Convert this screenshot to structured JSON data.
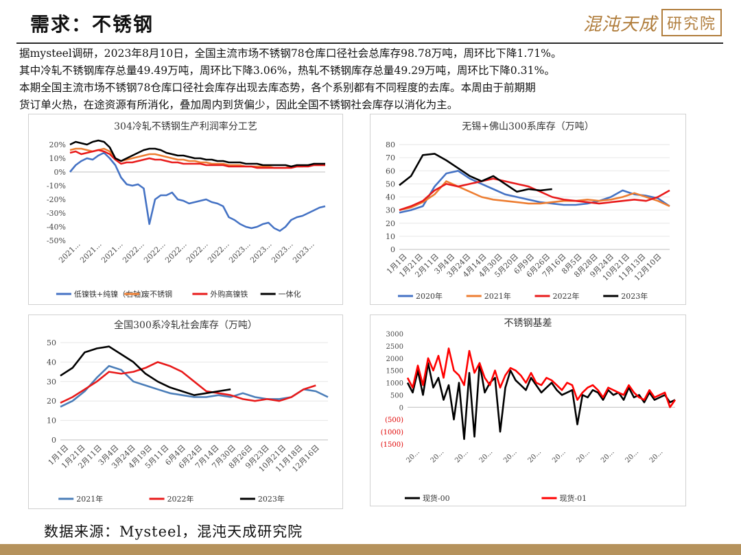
{
  "header": {
    "title": "需求：不锈钢",
    "logo_text": "混沌天成",
    "logo_seal": "研究院"
  },
  "paragraph": {
    "line1": "据mysteel调研，2023年8月10日，全国主流市场不锈钢78仓库口径社会总库存98.78万吨，周环比下降1.71%。",
    "line2": "其中冷轧不锈钢库存总量49.49万吨，周环比下降3.06%，热轧不锈钢库存总量49.29万吨，周环比下降0.31%。",
    "line3": "本期全国主流市场不锈钢78仓库口径社会库存出现去库态势，各个系别都有不同程度的去库。本周由于前期期",
    "line4": "货订单火热，在途资源有所消化，叠加周内到货偏少，因此全国不锈钢社会库存以消化为主。"
  },
  "source": "数据来源：Mysteel，混沌天成研究院",
  "colors": {
    "blue": "#4472c4",
    "orange": "#ed7d31",
    "red": "#e81a1a",
    "black": "#000000",
    "axis": "#d9d9d9",
    "brand": "#b5925c"
  },
  "chart_data": [
    {
      "id": "chart1",
      "type": "line",
      "title": "304冷轧不锈钢生产利润率分工艺",
      "ylim": [
        -50,
        20
      ],
      "yticks": [
        "20%",
        "10%",
        "0%",
        "-10%",
        "-20%",
        "-30%",
        "-40%",
        "-50%"
      ],
      "xticks": [
        "2021...",
        "2021...",
        "2021...",
        "2022...",
        "2022...",
        "2022...",
        "2022...",
        "2022...",
        "2023...",
        "2023...",
        "2023...",
        "2023..."
      ],
      "legend_position": "bottom",
      "series": [
        {
          "name": "低镍铁+纯镍（右轴）",
          "color": "#4472c4",
          "values": [
            0,
            5,
            8,
            10,
            9,
            12,
            14,
            10,
            5,
            -4,
            -9,
            -10,
            -9,
            -12,
            -38,
            -20,
            -17,
            -17,
            -15,
            -20,
            -21,
            -23,
            -22,
            -21,
            -20,
            -22,
            -23,
            -25,
            -33,
            -35,
            -38,
            -40,
            -41,
            -40,
            -38,
            -37,
            -41,
            -43,
            -40,
            -35,
            -33,
            -32,
            -30,
            -28,
            -26,
            -25
          ]
        },
        {
          "name": "废不锈钢",
          "color": "#ed7d31",
          "values": [
            16,
            17,
            17,
            16,
            15,
            16,
            17,
            15,
            10,
            8,
            9,
            10,
            11,
            12,
            13,
            13,
            12,
            11,
            10,
            9,
            9,
            8,
            8,
            7,
            7,
            6,
            6,
            6,
            5,
            5,
            5,
            4,
            4,
            4,
            4,
            4,
            3,
            3,
            3,
            4,
            4,
            4,
            5,
            5,
            5,
            5
          ]
        },
        {
          "name": "外购高镍铁",
          "color": "#e81a1a",
          "values": [
            14,
            15,
            13,
            14,
            15,
            16,
            15,
            13,
            9,
            6,
            7,
            7,
            8,
            9,
            10,
            9,
            9,
            8,
            7,
            7,
            6,
            6,
            6,
            6,
            5,
            5,
            5,
            5,
            4,
            4,
            4,
            4,
            4,
            3,
            3,
            3,
            3,
            3,
            3,
            3,
            4,
            4,
            4,
            5,
            5,
            5
          ]
        },
        {
          "name": "一体化",
          "color": "#000000",
          "values": [
            20,
            22,
            21,
            20,
            22,
            23,
            22,
            18,
            10,
            8,
            10,
            12,
            14,
            16,
            17,
            17,
            16,
            14,
            13,
            12,
            12,
            11,
            10,
            10,
            9,
            9,
            8,
            8,
            7,
            7,
            7,
            6,
            6,
            6,
            5,
            5,
            5,
            5,
            5,
            4,
            5,
            5,
            5,
            6,
            6,
            6
          ]
        }
      ]
    },
    {
      "id": "chart2",
      "type": "line",
      "title": "无锡+佛山300系库存（万吨）",
      "ylim": [
        0,
        80
      ],
      "yticks": [
        "80",
        "70",
        "60",
        "50",
        "40",
        "30",
        "20",
        "10",
        "0"
      ],
      "xticks": [
        "1月1日",
        "1月21日",
        "2月11日",
        "3月4日",
        "3月24日",
        "4月14日",
        "4月30日",
        "5月20日",
        "6月9日",
        "6月26日",
        "7月16日",
        "8月5日",
        "8月28日",
        "9月24日",
        "10月21日",
        "11月13日",
        "12月10日"
      ],
      "legend_position": "bottom",
      "series": [
        {
          "name": "2020年",
          "color": "#4472c4",
          "values": [
            28,
            30,
            33,
            48,
            58,
            60,
            54,
            50,
            46,
            42,
            40,
            38,
            36,
            35,
            34,
            34,
            35,
            37,
            40,
            45,
            42,
            41,
            39,
            33
          ]
        },
        {
          "name": "2021年",
          "color": "#ed7d31",
          "values": [
            30,
            32,
            36,
            42,
            52,
            48,
            44,
            40,
            38,
            37,
            36,
            35,
            35,
            36,
            37,
            37,
            38,
            37,
            38,
            40,
            43,
            40,
            37,
            33
          ]
        },
        {
          "name": "2022年",
          "color": "#e81a1a",
          "values": [
            30,
            33,
            37,
            45,
            50,
            48,
            50,
            52,
            54,
            52,
            50,
            48,
            44,
            40,
            38,
            37,
            36,
            35,
            36,
            37,
            38,
            37,
            40,
            45
          ]
        },
        {
          "name": "2023年",
          "color": "#000000",
          "values": [
            49,
            56,
            72,
            73,
            68,
            62,
            56,
            52,
            56,
            50,
            44,
            46,
            45,
            46
          ]
        }
      ]
    },
    {
      "id": "chart3",
      "type": "line",
      "title": "全国300系冷轧社会库存（万吨）",
      "ylim": [
        0,
        50
      ],
      "yticks": [
        "50",
        "40",
        "30",
        "20",
        "10",
        "0"
      ],
      "xticks": [
        "1月1日",
        "1月21日",
        "2月11日",
        "3月4日",
        "3月24日",
        "4月19日",
        "5月11日",
        "6月4日",
        "6月24日",
        "7月14日",
        "7月30日",
        "8月26日",
        "9月23日",
        "10月21日",
        "11月18日",
        "12月16日"
      ],
      "legend_position": "bottom",
      "series": [
        {
          "name": "2021年",
          "color": "#4a7db8",
          "values": [
            17,
            20,
            25,
            32,
            38,
            36,
            30,
            28,
            26,
            24,
            23,
            22,
            22,
            23,
            22,
            24,
            22,
            21,
            21,
            22,
            26,
            25,
            22
          ]
        },
        {
          "name": "2022年",
          "color": "#e81a1a",
          "values": [
            19,
            22,
            26,
            30,
            35,
            34,
            35,
            37,
            40,
            38,
            35,
            30,
            25,
            24,
            23,
            21,
            20,
            21,
            20,
            22,
            26,
            28
          ]
        },
        {
          "name": "2023年",
          "color": "#000000",
          "values": [
            33,
            37,
            45,
            47,
            48,
            44,
            40,
            34,
            30,
            27,
            25,
            23,
            24,
            25,
            26
          ]
        }
      ]
    },
    {
      "id": "chart4",
      "type": "line",
      "title": "不锈钢基差",
      "ylim": [
        -1500,
        3000
      ],
      "yticks": [
        "3000",
        "2500",
        "2000",
        "1500",
        "1000",
        "500",
        "0",
        "(500)",
        "(1000)",
        "(1500)"
      ],
      "xticks": [
        "20...",
        "20...",
        "20...",
        "20...",
        "20...",
        "20...",
        "20...",
        "20...",
        "20...",
        "20...",
        "20..."
      ],
      "legend_position": "bottom",
      "series": [
        {
          "name": "现货-00",
          "color": "#000000",
          "values": [
            1000,
            600,
            1500,
            500,
            1800,
            800,
            1200,
            300,
            900,
            -500,
            1000,
            -1300,
            1400,
            -1200,
            1800,
            600,
            1000,
            1200,
            -1000,
            800,
            1500,
            1100,
            900,
            700,
            1200,
            900,
            600,
            800,
            1000,
            700,
            500,
            600,
            700,
            -700,
            500,
            400,
            700,
            600,
            300,
            700,
            500,
            600,
            300,
            800,
            400,
            500,
            200,
            600,
            300,
            400,
            500,
            200,
            300
          ]
        },
        {
          "name": "现货-01",
          "color": "#ff0000",
          "values": [
            1200,
            800,
            1700,
            900,
            2000,
            1500,
            2100,
            1200,
            2400,
            1500,
            1300,
            900,
            2300,
            1400,
            1800,
            1200,
            900,
            1500,
            800,
            1300,
            1600,
            1500,
            1300,
            1000,
            1400,
            1000,
            900,
            1200,
            1100,
            900,
            700,
            1000,
            900,
            300,
            600,
            800,
            900,
            700,
            400,
            800,
            700,
            600,
            500,
            900,
            600,
            400,
            300,
            700,
            400,
            500,
            600,
            0,
            300
          ]
        }
      ]
    }
  ]
}
